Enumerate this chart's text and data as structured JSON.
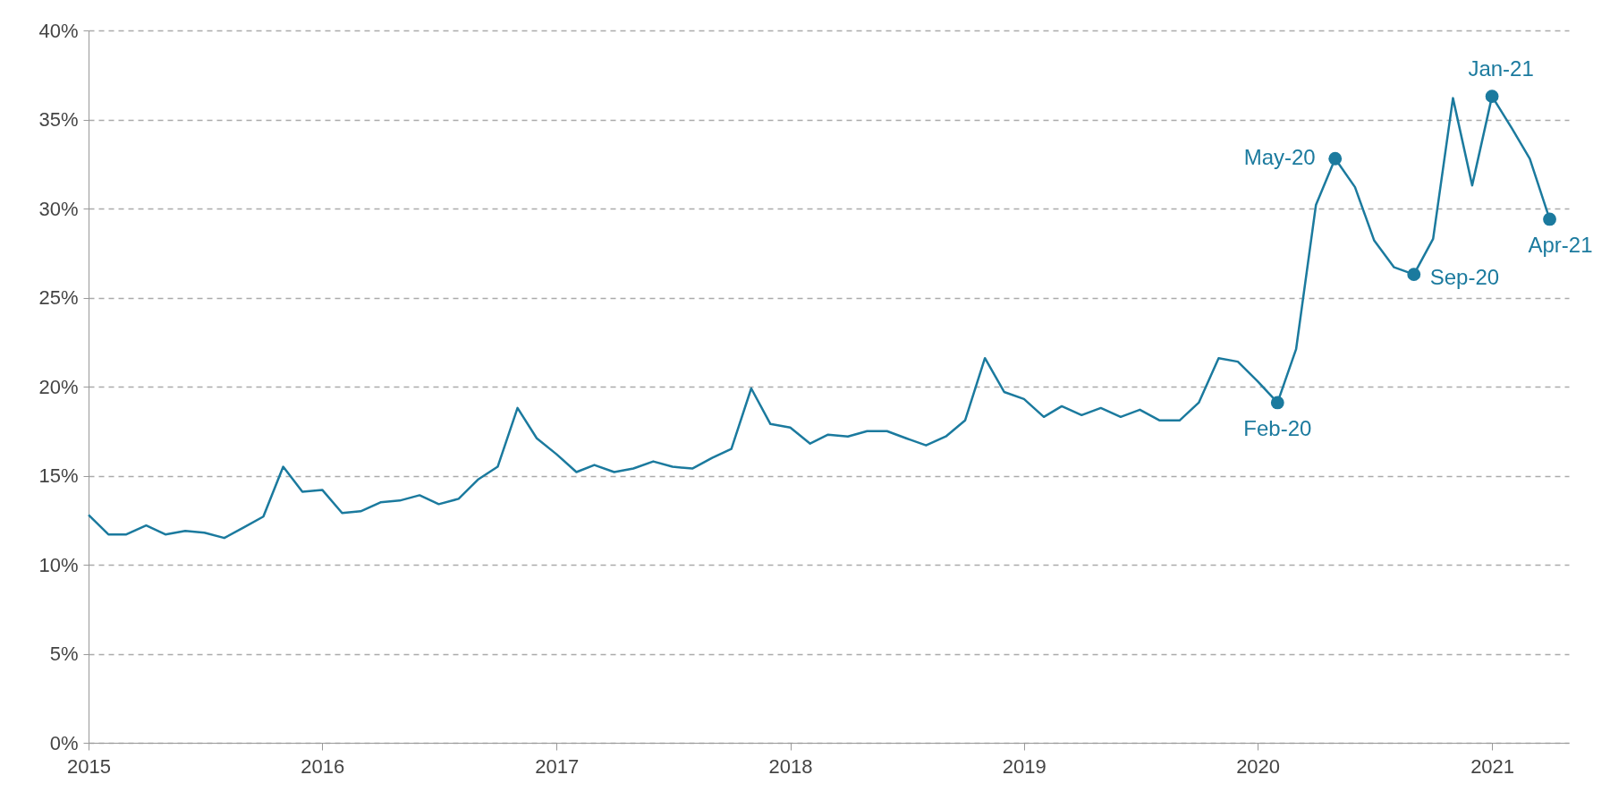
{
  "chart_data": {
    "type": "line",
    "x": [
      "2015-01",
      "2015-02",
      "2015-03",
      "2015-04",
      "2015-05",
      "2015-06",
      "2015-07",
      "2015-08",
      "2015-09",
      "2015-10",
      "2015-11",
      "2015-12",
      "2016-01",
      "2016-02",
      "2016-03",
      "2016-04",
      "2016-05",
      "2016-06",
      "2016-07",
      "2016-08",
      "2016-09",
      "2016-10",
      "2016-11",
      "2016-12",
      "2017-01",
      "2017-02",
      "2017-03",
      "2017-04",
      "2017-05",
      "2017-06",
      "2017-07",
      "2017-08",
      "2017-09",
      "2017-10",
      "2017-11",
      "2017-12",
      "2018-01",
      "2018-02",
      "2018-03",
      "2018-04",
      "2018-05",
      "2018-06",
      "2018-07",
      "2018-08",
      "2018-09",
      "2018-10",
      "2018-11",
      "2018-12",
      "2019-01",
      "2019-02",
      "2019-03",
      "2019-04",
      "2019-05",
      "2019-06",
      "2019-07",
      "2019-08",
      "2019-09",
      "2019-10",
      "2019-11",
      "2019-12",
      "2020-01",
      "2020-02",
      "2020-03",
      "2020-04",
      "2020-05",
      "2020-06",
      "2020-07",
      "2020-08",
      "2020-09",
      "2020-10",
      "2020-11",
      "2020-12",
      "2021-01",
      "2021-02",
      "2021-03",
      "2021-04"
    ],
    "series": [
      {
        "color": "#1b7a9e",
        "values": [
          12.8,
          11.7,
          11.7,
          12.2,
          11.7,
          11.9,
          11.8,
          11.5,
          12.1,
          12.7,
          15.5,
          14.1,
          14.2,
          12.9,
          13.0,
          13.5,
          13.6,
          13.9,
          13.4,
          13.7,
          14.8,
          15.5,
          18.8,
          17.1,
          16.2,
          15.2,
          15.6,
          15.2,
          15.4,
          15.8,
          15.5,
          15.4,
          16.0,
          16.5,
          19.9,
          17.9,
          17.7,
          16.8,
          17.3,
          17.2,
          17.5,
          17.5,
          17.1,
          16.7,
          17.2,
          18.1,
          21.6,
          19.7,
          19.3,
          18.3,
          18.9,
          18.4,
          18.8,
          18.3,
          18.7,
          18.1,
          18.1,
          19.1,
          21.6,
          21.4,
          20.3,
          19.1,
          22.1,
          30.2,
          32.8,
          31.2,
          28.2,
          26.7,
          26.3,
          28.3,
          36.2,
          31.3,
          36.3,
          34.5,
          32.8,
          29.4
        ]
      }
    ],
    "xlim": [
      "2015-01",
      "2021-05"
    ],
    "xticks": [
      {
        "value": "2015-01",
        "label": "2015"
      },
      {
        "value": "2016-01",
        "label": "2016"
      },
      {
        "value": "2017-01",
        "label": "2017"
      },
      {
        "value": "2018-01",
        "label": "2018"
      },
      {
        "value": "2019-01",
        "label": "2019"
      },
      {
        "value": "2020-01",
        "label": "2020"
      },
      {
        "value": "2021-01",
        "label": "2021"
      }
    ],
    "ylim": [
      0,
      40
    ],
    "yticks": [
      {
        "value": 0,
        "label": "0%"
      },
      {
        "value": 5,
        "label": "5%"
      },
      {
        "value": 10,
        "label": "10%"
      },
      {
        "value": 15,
        "label": "15%"
      },
      {
        "value": 20,
        "label": "20%"
      },
      {
        "value": 25,
        "label": "25%"
      },
      {
        "value": 30,
        "label": "30%"
      },
      {
        "value": 35,
        "label": "35%"
      },
      {
        "value": 40,
        "label": "40%"
      }
    ],
    "grid": "y",
    "line_style": "solid",
    "annotations": [
      {
        "text": "Feb-20",
        "x": "2020-02",
        "y": 19.1
      },
      {
        "text": "May-20",
        "x": "2020-05",
        "y": 32.8
      },
      {
        "text": "Sep-20",
        "x": "2020-09",
        "y": 26.3
      },
      {
        "text": "Jan-21",
        "x": "2021-01",
        "y": 36.3
      },
      {
        "text": "Apr-21",
        "x": "2021-04",
        "y": 29.4
      }
    ]
  }
}
